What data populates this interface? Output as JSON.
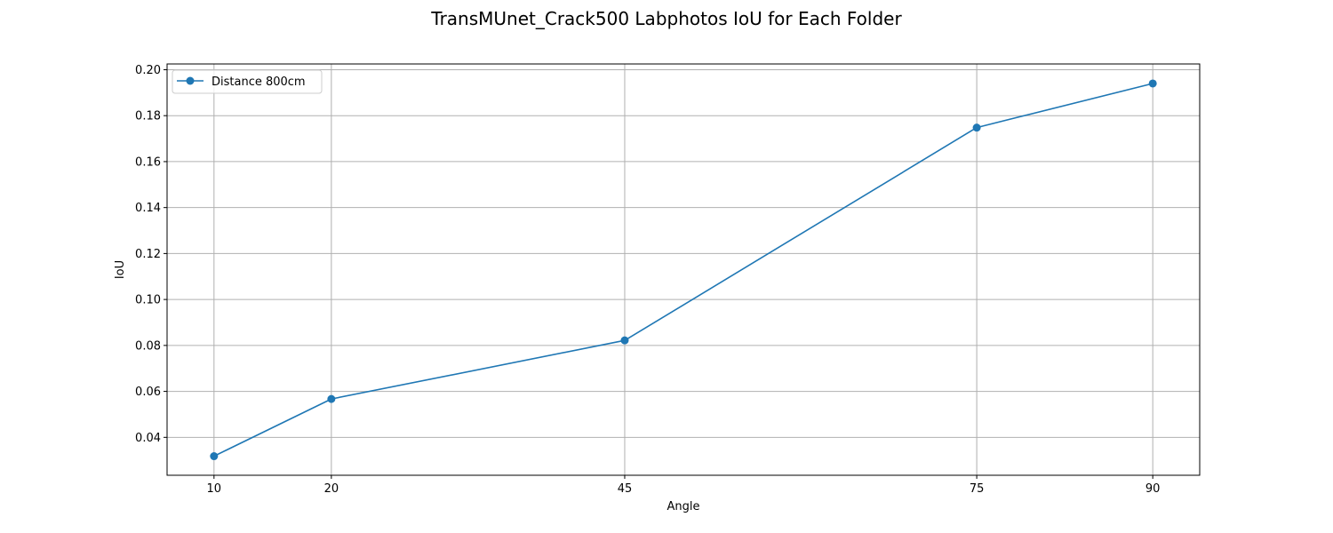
{
  "chart_data": {
    "type": "line",
    "title": "TransMUnet_Crack500 Labphotos IoU for Each Folder",
    "xlabel": "Angle",
    "ylabel": "IoU",
    "x": [
      10,
      20,
      45,
      75,
      90
    ],
    "x_tick_labels": [
      "10",
      "20",
      "45",
      "75",
      "90"
    ],
    "y_ticks": [
      0.04,
      0.06,
      0.08,
      0.1,
      0.12,
      0.14,
      0.16,
      0.18,
      0.2
    ],
    "y_tick_labels": [
      "0.04",
      "0.06",
      "0.08",
      "0.10",
      "0.12",
      "0.14",
      "0.16",
      "0.18",
      "0.20"
    ],
    "xlim": [
      6,
      94
    ],
    "ylim": [
      0.0235,
      0.2025
    ],
    "grid": true,
    "legend_position": "upper left",
    "series": [
      {
        "name": "Distance 800cm",
        "color": "#1f77b4",
        "marker": "circle",
        "values": [
          0.0318,
          0.0567,
          0.0822,
          0.1748,
          0.194
        ]
      }
    ]
  }
}
